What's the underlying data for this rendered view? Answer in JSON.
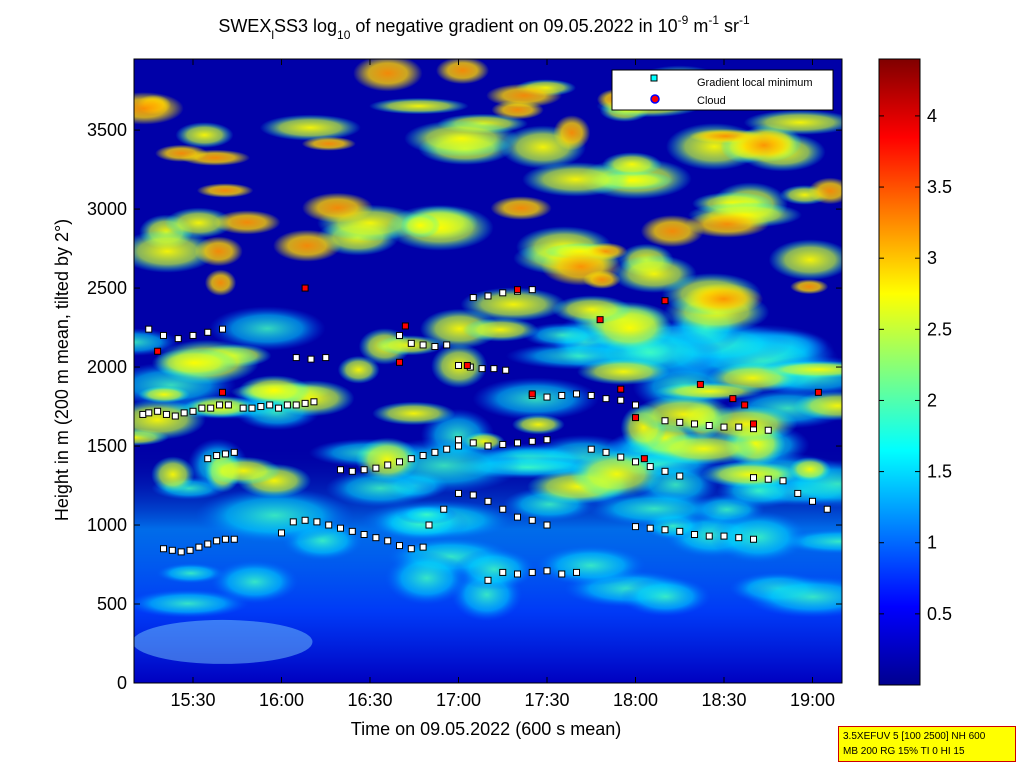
{
  "title": {
    "prefix": "SWEX",
    "sub": "l",
    "mid": "SS3 log",
    "sub2": "10",
    "rest": " of negative gradient on 09.05.2022 in 10",
    "sup1": "-9",
    "unit1": " m",
    "sup2": "-1",
    "unit2": " sr",
    "sup3": "-1"
  },
  "legend": {
    "items": [
      {
        "label": "Gradient local minimum",
        "color": "#00ffff",
        "edge": "#000000",
        "marker": "square"
      },
      {
        "label": "Cloud",
        "color": "#ff0000",
        "edge": "#0000ff",
        "marker": "circle"
      }
    ]
  },
  "info_box": {
    "line1": "3.5XEFUV 5 [100 2500] NH 600",
    "line2": "MB 200 RG 15% TI 0 HI 15"
  },
  "chart_data": {
    "type": "heatmap",
    "title": "SWEX_l SS3 log10 of negative gradient on 09.05.2022 in 10^-9 m^-1 sr^-1",
    "xlabel": "Time on 09.05.2022 (600 s mean)",
    "ylabel": "Height in m (200 m mean, tilted by 2°)",
    "xlim": [
      "15:10",
      "19:10"
    ],
    "ylim": [
      0,
      3950
    ],
    "x_ticks": [
      "15:30",
      "16:00",
      "16:30",
      "17:00",
      "17:30",
      "18:00",
      "18:30",
      "19:00"
    ],
    "y_ticks": [
      0,
      500,
      1000,
      1500,
      2000,
      2500,
      3000,
      3500
    ],
    "colorbar": {
      "min": 0,
      "max": 4.4,
      "ticks": [
        0.5,
        1,
        1.5,
        2,
        2.5,
        3,
        3.5,
        4
      ],
      "colormap": "jet"
    },
    "gradient_minimum_tracks": [
      {
        "x": [
          "15:13",
          "15:15",
          "15:18",
          "15:21",
          "15:24",
          "15:27",
          "15:30",
          "15:33",
          "15:36",
          "15:39",
          "15:42"
        ],
        "y": [
          1700,
          1710,
          1720,
          1700,
          1690,
          1710,
          1720,
          1740,
          1740,
          1760,
          1760
        ]
      },
      {
        "x": [
          "15:20",
          "15:23",
          "15:26",
          "15:29",
          "15:32",
          "15:35",
          "15:38",
          "15:41",
          "15:44"
        ],
        "y": [
          850,
          840,
          830,
          840,
          860,
          880,
          900,
          910,
          910
        ]
      },
      {
        "x": [
          "15:35",
          "15:38",
          "15:41",
          "15:44",
          "15:47",
          "15:50",
          "15:53",
          "15:56",
          "15:59",
          "16:02",
          "16:05",
          "16:08",
          "16:11"
        ],
        "y": [
          1420,
          1440,
          1450,
          1460,
          1740,
          1740,
          1750,
          1760,
          1740,
          1760,
          1760,
          1770,
          1780
        ]
      },
      {
        "x": [
          "16:00",
          "16:04",
          "16:08",
          "16:12",
          "16:16",
          "16:20",
          "16:24",
          "16:28",
          "16:32",
          "16:36",
          "16:40",
          "16:44",
          "16:48"
        ],
        "y": [
          950,
          1020,
          1030,
          1020,
          1000,
          980,
          960,
          940,
          920,
          900,
          870,
          850,
          860
        ]
      },
      {
        "x": [
          "16:20",
          "16:24",
          "16:28",
          "16:32",
          "16:36",
          "16:40",
          "16:44",
          "16:48",
          "16:52",
          "16:56",
          "17:00"
        ],
        "y": [
          1350,
          1340,
          1350,
          1360,
          1380,
          1400,
          1420,
          1440,
          1460,
          1480,
          1500
        ]
      },
      {
        "x": [
          "16:40",
          "16:44",
          "16:48",
          "16:52",
          "16:56",
          "17:00",
          "17:04",
          "17:08",
          "17:12",
          "17:16"
        ],
        "y": [
          2200,
          2150,
          2140,
          2130,
          2140,
          2010,
          2000,
          1990,
          1990,
          1980
        ]
      },
      {
        "x": [
          "16:50",
          "16:55",
          "17:00",
          "17:05",
          "17:10",
          "17:15",
          "17:20",
          "17:25",
          "17:30"
        ],
        "y": [
          1000,
          1100,
          1200,
          1190,
          1150,
          1100,
          1050,
          1030,
          1000
        ]
      },
      {
        "x": [
          "17:00",
          "17:05",
          "17:10",
          "17:15",
          "17:20",
          "17:25",
          "17:30"
        ],
        "y": [
          1540,
          1520,
          1500,
          1510,
          1520,
          1530,
          1540
        ]
      },
      {
        "x": [
          "17:10",
          "17:15",
          "17:20",
          "17:25",
          "17:30",
          "17:35",
          "17:40"
        ],
        "y": [
          650,
          700,
          690,
          700,
          710,
          690,
          700
        ]
      },
      {
        "x": [
          "17:25",
          "17:30",
          "17:35",
          "17:40",
          "17:45",
          "17:50",
          "17:55",
          "18:00"
        ],
        "y": [
          1820,
          1810,
          1820,
          1830,
          1820,
          1800,
          1790,
          1760
        ]
      },
      {
        "x": [
          "17:45",
          "17:50",
          "17:55",
          "18:00",
          "18:05",
          "18:10",
          "18:15"
        ],
        "y": [
          1480,
          1460,
          1430,
          1400,
          1370,
          1340,
          1310
        ]
      },
      {
        "x": [
          "18:00",
          "18:05",
          "18:10",
          "18:15",
          "18:20",
          "18:25",
          "18:30",
          "18:35",
          "18:40"
        ],
        "y": [
          990,
          980,
          970,
          960,
          940,
          930,
          930,
          920,
          910
        ]
      },
      {
        "x": [
          "18:10",
          "18:15",
          "18:20",
          "18:25",
          "18:30",
          "18:35",
          "18:40",
          "18:45"
        ],
        "y": [
          1660,
          1650,
          1640,
          1630,
          1620,
          1620,
          1610,
          1600
        ]
      },
      {
        "x": [
          "18:40",
          "18:45",
          "18:50",
          "18:55",
          "19:00",
          "19:05"
        ],
        "y": [
          1300,
          1290,
          1280,
          1200,
          1150,
          1100
        ]
      },
      {
        "x": [
          "17:05",
          "17:10",
          "17:15",
          "17:20",
          "17:25"
        ],
        "y": [
          2440,
          2450,
          2470,
          2480,
          2490
        ]
      },
      {
        "x": [
          "15:15",
          "15:20",
          "15:25",
          "15:30",
          "15:35",
          "15:40"
        ],
        "y": [
          2240,
          2200,
          2180,
          2200,
          2220,
          2240
        ]
      },
      {
        "x": [
          "16:05",
          "16:10",
          "16:15"
        ],
        "y": [
          2060,
          2050,
          2060
        ]
      }
    ],
    "cloud_points": [
      {
        "x": "15:18",
        "y": 2100
      },
      {
        "x": "15:40",
        "y": 1840
      },
      {
        "x": "16:08",
        "y": 2500
      },
      {
        "x": "16:42",
        "y": 2260
      },
      {
        "x": "16:40",
        "y": 2030
      },
      {
        "x": "17:03",
        "y": 2010
      },
      {
        "x": "17:20",
        "y": 2490
      },
      {
        "x": "17:55",
        "y": 1860
      },
      {
        "x": "18:00",
        "y": 1680
      },
      {
        "x": "18:03",
        "y": 1420
      },
      {
        "x": "18:10",
        "y": 2420
      },
      {
        "x": "18:33",
        "y": 1800
      },
      {
        "x": "18:37",
        "y": 1760
      },
      {
        "x": "18:22",
        "y": 1890
      },
      {
        "x": "18:40",
        "y": 1640
      },
      {
        "x": "17:48",
        "y": 2300
      },
      {
        "x": "17:25",
        "y": 1830
      },
      {
        "x": "19:02",
        "y": 1840
      }
    ]
  }
}
